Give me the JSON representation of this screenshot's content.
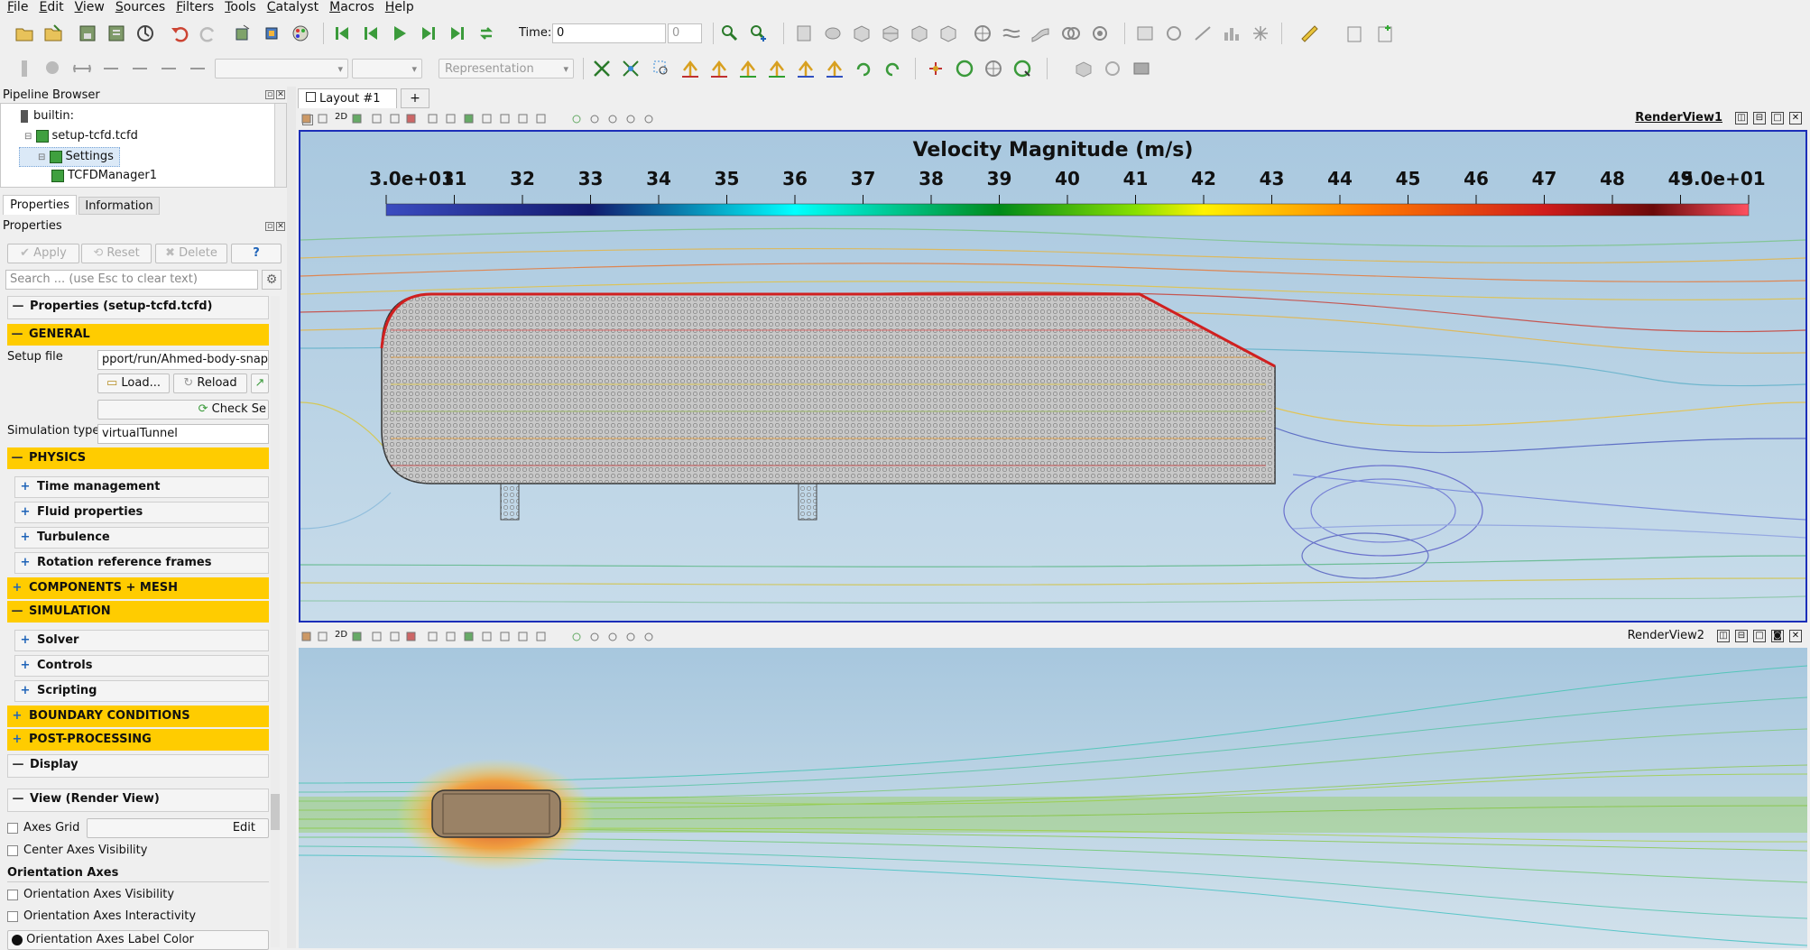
{
  "menu": [
    "File",
    "Edit",
    "View",
    "Sources",
    "Filters",
    "Tools",
    "Catalyst",
    "Macros",
    "Help"
  ],
  "toolbar": {
    "time_label": "Time:",
    "time_value": "0",
    "time_index": "0",
    "representation_placeholder": "Representation"
  },
  "pipeline": {
    "title": "Pipeline Browser",
    "items": [
      {
        "label": "builtin:"
      },
      {
        "label": "setup-tcfd.tcfd"
      },
      {
        "label": "Settings"
      },
      {
        "label": "TCFDManager1"
      }
    ]
  },
  "tabs": {
    "properties": "Properties",
    "information": "Information"
  },
  "properties": {
    "title": "Properties",
    "apply": "Apply",
    "reset": "Reset",
    "delete": "Delete",
    "help": "?",
    "search_placeholder": "Search ... (use Esc to clear text)",
    "section_title": "Properties (setup-tcfd.tcfd)",
    "general": "GENERAL",
    "setup_file_label": "Setup file",
    "setup_file_value": "pport/run/Ahmed-body-snappy/t",
    "load": "Load...",
    "reload": "Reload",
    "check": "Check Se",
    "sim_type_label": "Simulation type",
    "sim_type_value": "virtualTunnel",
    "physics": "PHYSICS",
    "time_management": "Time management",
    "fluid_properties": "Fluid properties",
    "turbulence": "Turbulence",
    "rotation_frames": "Rotation reference frames",
    "components_mesh": "COMPONENTS + MESH",
    "simulation": "SIMULATION",
    "solver": "Solver",
    "controls": "Controls",
    "scripting": "Scripting",
    "boundary_conditions": "BOUNDARY CONDITIONS",
    "post_processing": "POST-PROCESSING",
    "display": "Display",
    "view_render": "View (Render View)",
    "axes_grid": "Axes Grid",
    "edit": "Edit",
    "center_axes": "Center Axes Visibility",
    "orientation_axes": "Orientation Axes",
    "orientation_visibility": "Orientation Axes Visibility",
    "orientation_interactivity": "Orientation Axes Interactivity",
    "orientation_label_color": "Orientation Axes Label Color"
  },
  "layout": {
    "tab": "Layout #1",
    "add": "+"
  },
  "view1": {
    "name": "RenderView1",
    "toolbar_2d": "2D",
    "colorbar": {
      "title": "Velocity Magnitude (m/s)",
      "ticks": [
        "3.0e+01",
        "31",
        "32",
        "33",
        "34",
        "35",
        "36",
        "37",
        "38",
        "39",
        "40",
        "41",
        "42",
        "43",
        "44",
        "45",
        "46",
        "47",
        "48",
        "49",
        "5.0e+01"
      ]
    }
  },
  "view2": {
    "name": "RenderView2",
    "toolbar_2d": "2D"
  },
  "colors": {
    "accent_yellow": "#ffcc00",
    "view_border": "#1b2eb8",
    "bg_blue": "#c0d8ea"
  }
}
